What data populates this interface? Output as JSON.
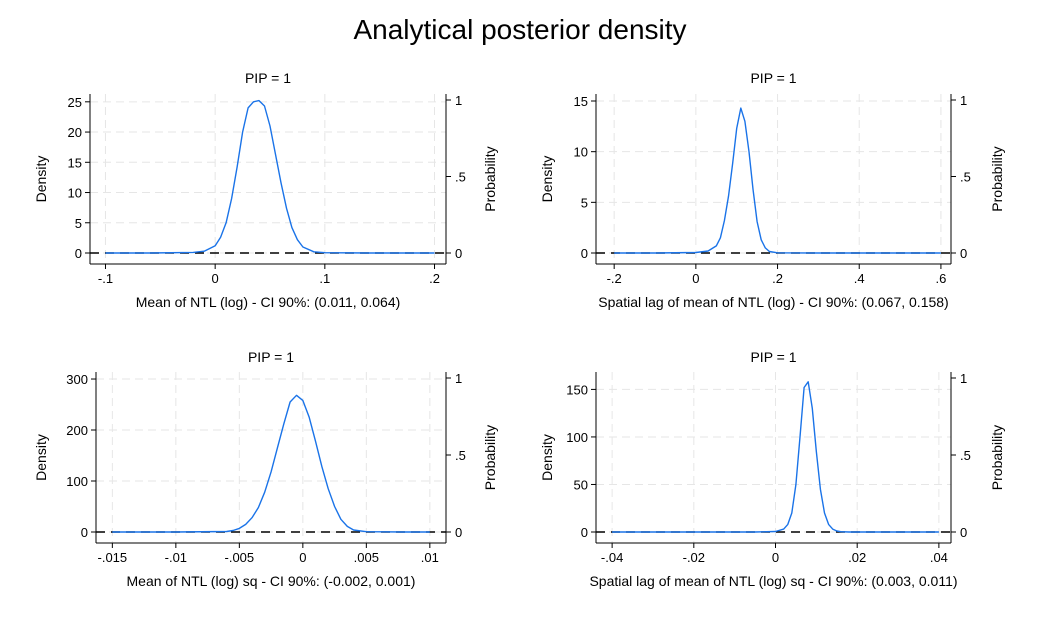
{
  "title": "Analytical posterior density",
  "colors": {
    "density_line": "#1a73e8",
    "axis": "#000000",
    "grid": "#e6e6e6",
    "zero_line": "#000000"
  },
  "chart_data": [
    {
      "type": "line",
      "subtitle": "PIP = 1",
      "xlabel": "Mean of NTL (log) -  CI 90%: (0.011,  0.064)",
      "ylabel": "Density",
      "y2label": "Probability",
      "xlim": [
        -0.105,
        0.205
      ],
      "ylim": [
        0,
        25.3
      ],
      "y2lim": [
        0,
        1
      ],
      "xticks": [
        -0.1,
        0,
        0.1,
        0.2
      ],
      "xtick_labels": [
        "-.1",
        "0",
        ".1",
        ".2"
      ],
      "yticks": [
        0,
        5,
        10,
        15,
        20,
        25
      ],
      "ytick_labels": [
        "0",
        "5",
        "10",
        "15",
        "20",
        "25"
      ],
      "y2ticks": [
        0,
        0.5,
        1
      ],
      "y2tick_labels": [
        "0",
        ".5",
        "1"
      ],
      "grid": true,
      "probability_value": 0,
      "series": [
        {
          "x": [
            -0.1,
            -0.06,
            -0.02,
            -0.01,
            0,
            0.005,
            0.01,
            0.015,
            0.02,
            0.025,
            0.03,
            0.035,
            0.04,
            0.045,
            0.05,
            0.055,
            0.06,
            0.065,
            0.07,
            0.075,
            0.08,
            0.09,
            0.1,
            0.14,
            0.18,
            0.2
          ],
          "y": [
            0,
            0,
            0.1,
            0.3,
            1.2,
            2.6,
            5.0,
            9.0,
            14.2,
            20.0,
            24.0,
            25.0,
            25.2,
            24.3,
            21.0,
            16.3,
            11.6,
            7.4,
            4.2,
            2.2,
            1.0,
            0.2,
            0.05,
            0,
            0,
            0
          ]
        }
      ]
    },
    {
      "type": "line",
      "subtitle": "PIP = 1",
      "xlabel": "Spatial lag of mean of NTL (log) - CI 90%: (0.067,  0.158)",
      "ylabel": "Density",
      "y2label": "Probability",
      "xlim": [
        -0.22,
        0.61
      ],
      "ylim": [
        0,
        15.1
      ],
      "y2lim": [
        0,
        1
      ],
      "xticks": [
        -0.2,
        0,
        0.2,
        0.4,
        0.6
      ],
      "xtick_labels": [
        "-.2",
        "0",
        ".2",
        ".4",
        ".6"
      ],
      "yticks": [
        0,
        5,
        10,
        15
      ],
      "ytick_labels": [
        "0",
        "5",
        "10",
        "15"
      ],
      "y2ticks": [
        0,
        0.5,
        1
      ],
      "y2tick_labels": [
        "0",
        ".5",
        "1"
      ],
      "grid": true,
      "probability_value": 0,
      "series": [
        {
          "x": [
            -0.2,
            -0.1,
            0,
            0.03,
            0.05,
            0.06,
            0.07,
            0.08,
            0.09,
            0.1,
            0.11,
            0.12,
            0.13,
            0.14,
            0.15,
            0.16,
            0.17,
            0.18,
            0.2,
            0.3,
            0.5,
            0.6
          ],
          "y": [
            0,
            0,
            0.05,
            0.2,
            0.7,
            1.5,
            3.2,
            5.6,
            8.8,
            12.3,
            14.3,
            13.0,
            10.0,
            6.3,
            3.1,
            1.3,
            0.5,
            0.15,
            0.02,
            0,
            0,
            0
          ]
        }
      ]
    },
    {
      "type": "line",
      "subtitle": "PIP = 1",
      "xlabel": "Mean of NTL (log) sq - CI 90%: (-0.002,  0.001)",
      "ylabel": "Density",
      "y2label": "Probability",
      "xlim": [
        -0.0155,
        0.0108
      ],
      "ylim": [
        0,
        302
      ],
      "y2lim": [
        0,
        1
      ],
      "xticks": [
        -0.015,
        -0.01,
        -0.005,
        0,
        0.005,
        0.01
      ],
      "xtick_labels": [
        "-.015",
        "-.01",
        "-.005",
        "0",
        ".005",
        ".01"
      ],
      "yticks": [
        0,
        100,
        200,
        300
      ],
      "ytick_labels": [
        "0",
        "100",
        "200",
        "300"
      ],
      "y2ticks": [
        0,
        0.5,
        1
      ],
      "y2tick_labels": [
        "0",
        ".5",
        "1"
      ],
      "grid": true,
      "probability_value": 0,
      "series": [
        {
          "x": [
            -0.015,
            -0.01,
            -0.006,
            -0.0055,
            -0.005,
            -0.0045,
            -0.004,
            -0.0035,
            -0.003,
            -0.0025,
            -0.002,
            -0.0015,
            -0.001,
            -0.0005,
            0,
            0.0005,
            0.001,
            0.0015,
            0.002,
            0.0025,
            0.003,
            0.0035,
            0.004,
            0.005,
            0.008,
            0.01
          ],
          "y": [
            0,
            0,
            1,
            3,
            7,
            15,
            28,
            48,
            78,
            118,
            165,
            212,
            255,
            268,
            258,
            225,
            178,
            128,
            85,
            50,
            25,
            11,
            4,
            0.5,
            0,
            0
          ]
        }
      ]
    },
    {
      "type": "line",
      "subtitle": "PIP = 1",
      "xlabel": "Spatial lag of mean of NTL (log) sq - CI 90%: (0.003,  0.011)",
      "ylabel": "Density",
      "y2label": "Probability",
      "xlim": [
        -0.0415,
        0.0415
      ],
      "ylim": [
        0,
        162
      ],
      "y2lim": [
        0,
        1
      ],
      "xticks": [
        -0.04,
        -0.02,
        0,
        0.02,
        0.04
      ],
      "xtick_labels": [
        "-.04",
        "-.02",
        "0",
        ".02",
        ".04"
      ],
      "yticks": [
        0,
        50,
        100,
        150
      ],
      "ytick_labels": [
        "0",
        "50",
        "100",
        "150"
      ],
      "y2ticks": [
        0,
        0.5,
        1
      ],
      "y2tick_labels": [
        "0",
        ".5",
        "1"
      ],
      "grid": true,
      "probability_value": 0,
      "series": [
        {
          "x": [
            -0.04,
            -0.02,
            -0.005,
            0,
            0.002,
            0.003,
            0.004,
            0.005,
            0.006,
            0.007,
            0.008,
            0.009,
            0.01,
            0.011,
            0.012,
            0.013,
            0.014,
            0.015,
            0.016,
            0.018,
            0.025,
            0.04
          ],
          "y": [
            0,
            0,
            0,
            0.5,
            3,
            8,
            20,
            50,
            100,
            152,
            158,
            130,
            85,
            45,
            20,
            8,
            3,
            1,
            0.3,
            0,
            0,
            0
          ]
        }
      ]
    }
  ]
}
